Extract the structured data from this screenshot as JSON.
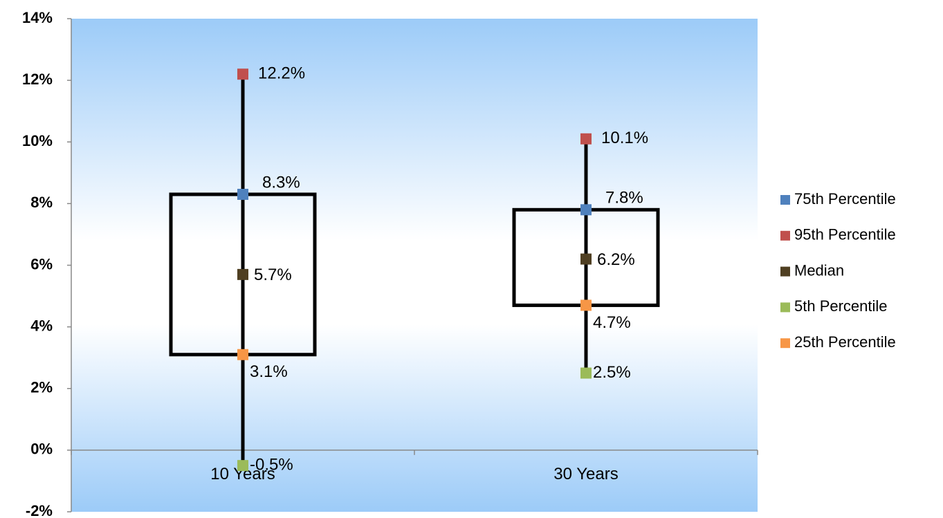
{
  "chart_data": {
    "type": "box",
    "categories": [
      "10 Years",
      "30 Years"
    ],
    "series": [
      {
        "name": "75th Percentile",
        "color": "#4f81bd",
        "values": [
          8.3,
          7.8
        ],
        "value_labels": [
          "8.3%",
          "7.8%"
        ]
      },
      {
        "name": "95th Percentile",
        "color": "#c0504d",
        "values": [
          12.2,
          10.1
        ],
        "value_labels": [
          "12.2%",
          "10.1%"
        ]
      },
      {
        "name": "Median",
        "color": "#4f3f22",
        "values": [
          5.7,
          6.2
        ],
        "value_labels": [
          "5.7%",
          "6.2%"
        ]
      },
      {
        "name": "5th Percentile",
        "color": "#9bbb59",
        "values": [
          -0.5,
          2.5
        ],
        "value_labels": [
          "-0.5%",
          "2.5%"
        ]
      },
      {
        "name": "25th Percentile",
        "color": "#f79646",
        "values": [
          3.1,
          4.7
        ],
        "value_labels": [
          "3.1%",
          "4.7%"
        ]
      }
    ],
    "ylim": [
      -2,
      14
    ],
    "yticks": [
      {
        "value": -2,
        "label": "-2%"
      },
      {
        "value": 0,
        "label": "0%"
      },
      {
        "value": 2,
        "label": "2%"
      },
      {
        "value": 4,
        "label": "4%"
      },
      {
        "value": 6,
        "label": "6%"
      },
      {
        "value": 8,
        "label": "8%"
      },
      {
        "value": 10,
        "label": "10%"
      },
      {
        "value": 12,
        "label": "12%"
      },
      {
        "value": 14,
        "label": "14%"
      }
    ],
    "legend": "right"
  }
}
